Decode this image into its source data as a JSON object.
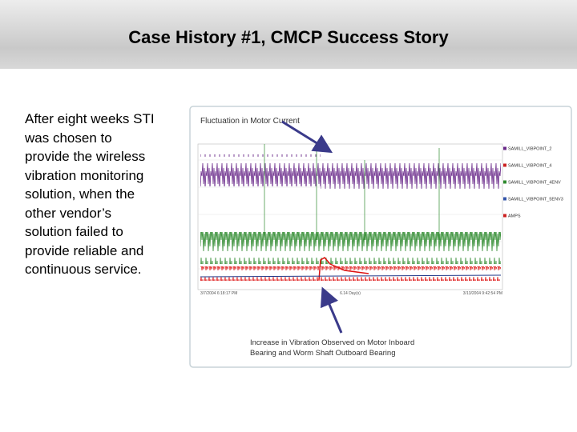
{
  "title": "Case History #1, CMCP Success Story",
  "body_lines": [
    "After eight weeks STI",
    "was chosen to",
    "provide the wireless",
    "vibration monitoring",
    "solution, when the",
    "other vendor’s",
    "solution failed to",
    "provide reliable and",
    "continuous service."
  ],
  "figure": {
    "callout_top": "Fluctuation in Motor Current",
    "callout_bottom_lines": [
      "Increase in Vibration Observed on Motor Inboard",
      "Bearing and Worm Shaft Outboard Bearing"
    ],
    "legend": [
      "SAMILL_VIBPOINT_2",
      "SAMILL_VIBPOINT_4",
      "SAMILL_VIBPOINT_4ENV",
      "SAMILL_VIBPOINT_5ENV3",
      "AMPS"
    ],
    "x_start": "3/7/2004 6:18:17 PM",
    "x_span": "6.14 Day(s)",
    "x_end": "3/13/2004 9:42:54 PM"
  }
}
